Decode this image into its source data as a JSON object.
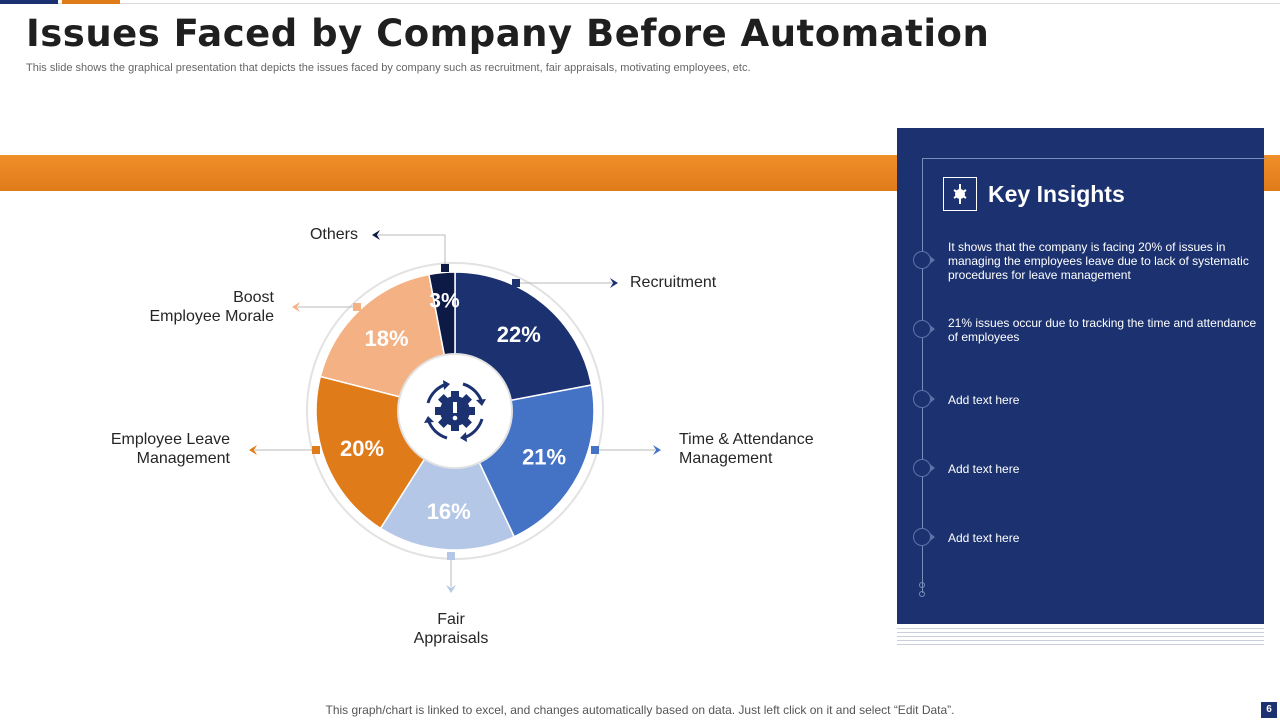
{
  "header": {
    "title": "Issues Faced by Company Before Automation",
    "subtitle": "This slide shows the graphical presentation that depicts the issues faced by company such as recruitment, fair appraisals, motivating employees, etc."
  },
  "chart_data": {
    "type": "pie",
    "title": "",
    "categories": [
      "Recruitment",
      "Time & Attendance Management",
      "Fair Appraisals",
      "Employee Leave Management",
      "Boost Employee Morale",
      "Others"
    ],
    "values": [
      22,
      21,
      16,
      20,
      18,
      3
    ],
    "value_labels": [
      "22%",
      "21%",
      "16%",
      "20%",
      "18%",
      "3%"
    ],
    "colors": [
      "#1c3270",
      "#4472c4",
      "#b4c7e7",
      "#e07b1a",
      "#f4b183",
      "#0d1a45"
    ],
    "label_lines": [
      [
        "Recruitment"
      ],
      [
        "Time & Attendance",
        "Management"
      ],
      [
        "Fair",
        "Appraisals"
      ],
      [
        "Employee Leave",
        "Management"
      ],
      [
        "Boost",
        "Employee Morale"
      ],
      [
        "Others"
      ]
    ],
    "legend": "none",
    "center_icon": "gear-alert-icon"
  },
  "insights": {
    "heading": "Key Insights",
    "icon": "insight-icon",
    "items": [
      "It shows that the company is facing 20% of issues in managing the employees leave due to lack of systematic procedures for leave management",
      "21% issues occur due to tracking the time and attendance of employees",
      "Add text here",
      "Add text here",
      "Add text here"
    ]
  },
  "footer": {
    "note": "This graph/chart is linked to excel, and changes automatically based on data. Just left click on it and select “Edit Data”.",
    "page": "6"
  }
}
